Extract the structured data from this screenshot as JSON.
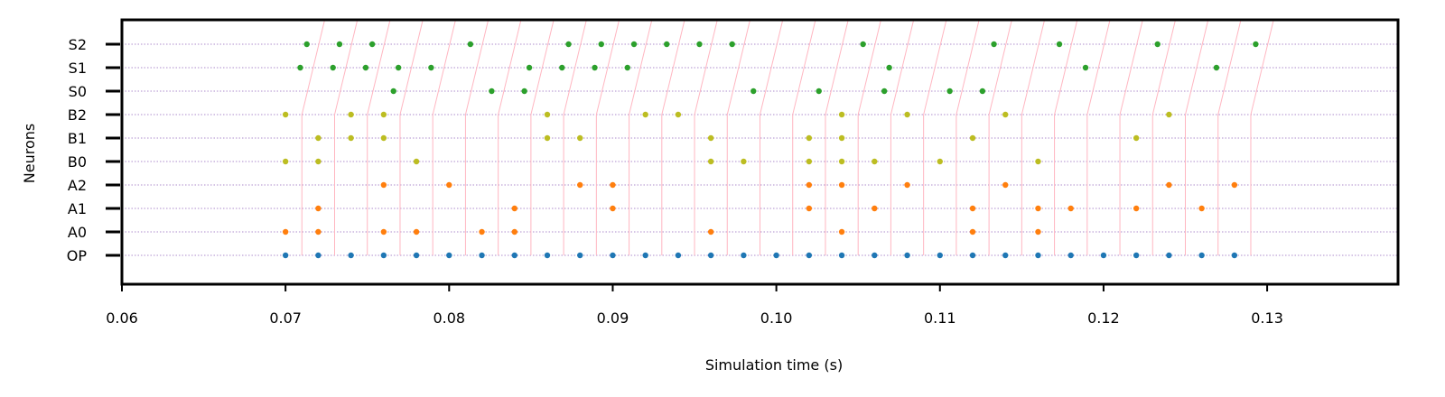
{
  "chart_data": {
    "type": "scatter",
    "title": "",
    "xlabel": "Simulation time (s)",
    "ylabel": "Neurons",
    "xlim": [
      0.06,
      0.138
    ],
    "x_ticks": [
      "0.06",
      "0.07",
      "0.08",
      "0.09",
      "0.10",
      "0.11",
      "0.12",
      "0.13"
    ],
    "y_categories": [
      "OP",
      "A0",
      "A1",
      "A2",
      "B0",
      "B1",
      "B2",
      "S0",
      "S1",
      "S2"
    ],
    "grid": "horizontal dotted per neuron row",
    "colors": {
      "OP": "#1f77b4",
      "A": "#ff7f0e",
      "B": "#bcbd22",
      "S": "#2ca02c",
      "step_lines": "#ffb6c1",
      "row_grid": "#9467bd"
    },
    "spikes": {
      "OP": [
        0.07,
        0.072,
        0.074,
        0.076,
        0.078,
        0.08,
        0.082,
        0.084,
        0.086,
        0.088,
        0.09,
        0.092,
        0.094,
        0.096,
        0.098,
        0.1,
        0.102,
        0.104,
        0.106,
        0.108,
        0.11,
        0.112,
        0.114,
        0.116,
        0.118,
        0.12,
        0.122,
        0.124,
        0.126,
        0.128
      ],
      "A0": [
        0.07,
        0.072,
        0.076,
        0.078,
        0.082,
        0.084,
        0.096,
        0.104,
        0.112,
        0.116
      ],
      "A1": [
        0.072,
        0.084,
        0.09,
        0.102,
        0.106,
        0.112,
        0.116,
        0.118,
        0.122,
        0.126
      ],
      "A2": [
        0.076,
        0.08,
        0.088,
        0.09,
        0.102,
        0.104,
        0.108,
        0.114,
        0.124,
        0.128
      ],
      "B0": [
        0.07,
        0.072,
        0.078,
        0.096,
        0.098,
        0.102,
        0.104,
        0.106,
        0.11,
        0.116
      ],
      "B1": [
        0.072,
        0.074,
        0.076,
        0.086,
        0.088,
        0.096,
        0.102,
        0.104,
        0.112,
        0.122
      ],
      "B2": [
        0.07,
        0.074,
        0.076,
        0.086,
        0.092,
        0.094,
        0.104,
        0.108,
        0.114,
        0.124
      ],
      "S0": [
        0.0766,
        0.0826,
        0.0846,
        0.0986,
        0.1026,
        0.1066,
        0.1106,
        0.1126
      ],
      "S1": [
        0.0709,
        0.0729,
        0.0749,
        0.0769,
        0.0789,
        0.0849,
        0.0869,
        0.0889,
        0.0909,
        0.1069,
        0.1189,
        0.1269
      ],
      "S2": [
        0.0713,
        0.0733,
        0.0753,
        0.0813,
        0.0873,
        0.0893,
        0.0913,
        0.0933,
        0.0953,
        0.0973,
        0.1053,
        0.1133,
        0.1173,
        0.1233,
        0.1293
      ]
    },
    "step_times": [
      0.071,
      0.073,
      0.075,
      0.077,
      0.079,
      0.081,
      0.083,
      0.085,
      0.087,
      0.089,
      0.091,
      0.093,
      0.095,
      0.097,
      0.099,
      0.101,
      0.103,
      0.105,
      0.107,
      0.109,
      0.111,
      0.113,
      0.115,
      0.117,
      0.119,
      0.121,
      0.123,
      0.125,
      0.127,
      0.129
    ]
  }
}
